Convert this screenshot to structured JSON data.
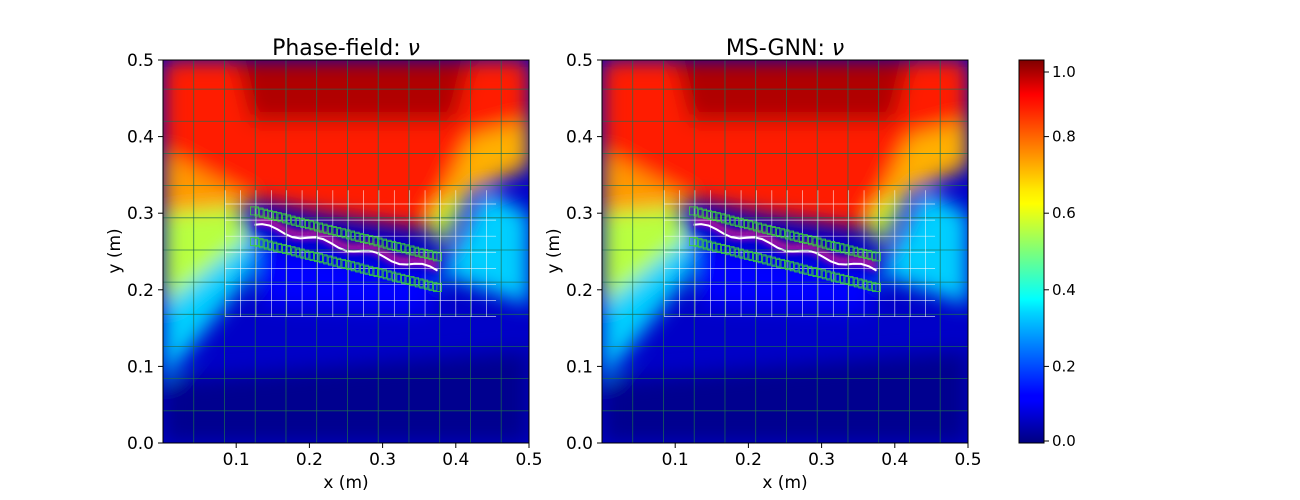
{
  "chart_data": [
    {
      "type": "heatmap",
      "title": "Phase-field: ",
      "title_symbol": "ν",
      "xlabel": "x (m)",
      "ylabel": "y (m)",
      "xlim": [
        0.0,
        0.5
      ],
      "ylim": [
        0.0,
        0.5
      ],
      "xticks": [
        "0.1",
        "0.2",
        "0.3",
        "0.4",
        "0.5"
      ],
      "yticks": [
        "0.0",
        "0.1",
        "0.2",
        "0.3",
        "0.4",
        "0.5"
      ],
      "field": "ν",
      "crack": {
        "start": [
          0.125,
          0.285
        ],
        "end": [
          0.375,
          0.225
        ]
      },
      "refined_region": {
        "x": [
          0.085,
          0.455
        ],
        "y": [
          0.165,
          0.33
        ]
      },
      "colormap": "jet"
    },
    {
      "type": "heatmap",
      "title": "MS-GNN: ",
      "title_symbol": "ν",
      "xlabel": "x (m)",
      "ylabel": "y (m)",
      "xlim": [
        0.0,
        0.5
      ],
      "ylim": [
        0.0,
        0.5
      ],
      "xticks": [
        "0.1",
        "0.2",
        "0.3",
        "0.4",
        "0.5"
      ],
      "yticks": [
        "0.0",
        "0.1",
        "0.2",
        "0.3",
        "0.4",
        "0.5"
      ],
      "field": "ν",
      "crack": {
        "start": [
          0.125,
          0.285
        ],
        "end": [
          0.375,
          0.225
        ]
      },
      "refined_region": {
        "x": [
          0.085,
          0.455
        ],
        "y": [
          0.165,
          0.33
        ]
      },
      "colormap": "jet"
    }
  ],
  "colorbar": {
    "range": [
      0.0,
      1.0
    ],
    "ticks": [
      "0.0",
      "0.2",
      "0.4",
      "0.6",
      "0.8",
      "1.0"
    ],
    "tick_values": [
      0.0,
      0.2,
      0.4,
      0.6,
      0.8,
      1.0
    ],
    "colormap": "jet"
  }
}
